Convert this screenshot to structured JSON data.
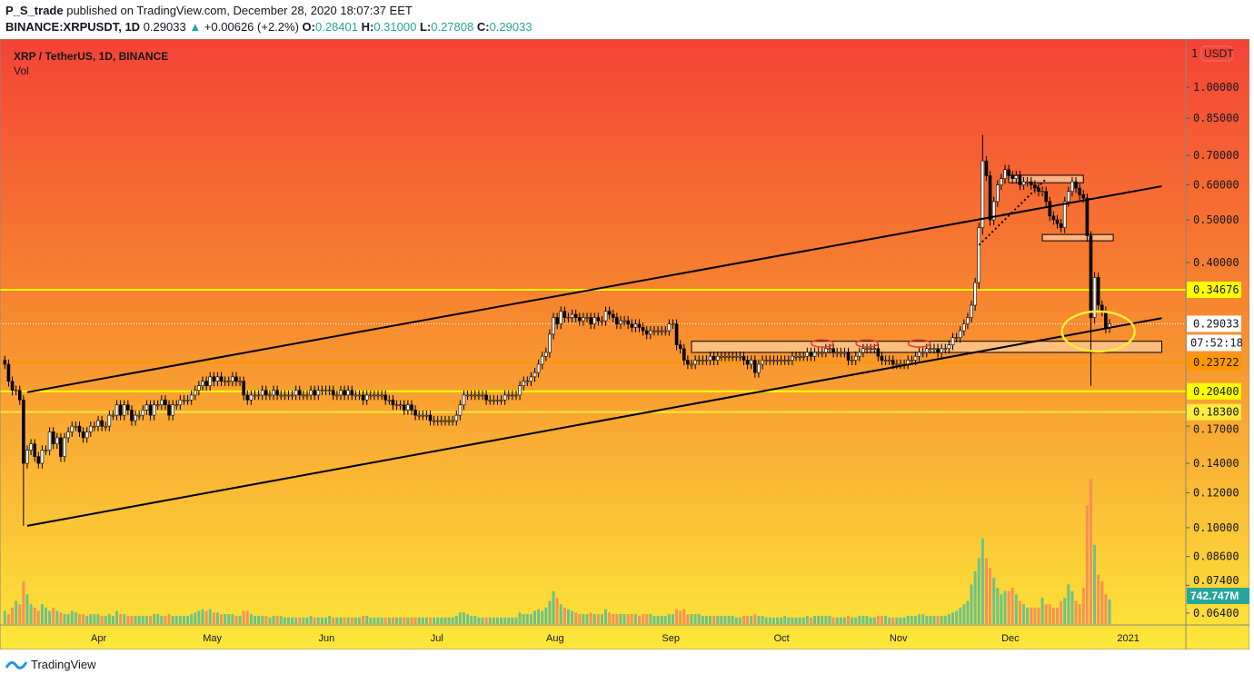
{
  "header": {
    "author": "P_S_trade",
    "published": "published on TradingView.com, December 28, 2020 18:07:37 EET",
    "symbol": "BINANCE:XRPUSDT, 1D",
    "last": "0.29033",
    "change": "+0.00626 (+2.2%)",
    "o_label": "O:",
    "o": "0.28401",
    "h_label": "H:",
    "h": "0.31000",
    "l_label": "L:",
    "l": "0.27808",
    "c_label": "C:",
    "c": "0.29033"
  },
  "legend": {
    "title": "XRP / TetherUS, 1D, BINANCE",
    "indicator": "Vol"
  },
  "footer": {
    "brand": "TradingView"
  },
  "colors": {
    "bg_top": "#f44336",
    "bg_mid": "#f7892f",
    "bg_bottom": "#fde83a",
    "up_volume": "#5fbf8f",
    "down_volume": "#f58a5a",
    "volume_badge": "#26a69a",
    "level_yellow": "#ffff00",
    "level_orange": "#ff9800"
  },
  "chart_data": {
    "type": "candlestick",
    "title": "XRP / TetherUS, 1D, BINANCE",
    "scale": "log",
    "currency_label": "USDT",
    "scale_mode_label": "1",
    "ylim": [
      0.06,
      1.1
    ],
    "y_ticks": [
      "1.00000",
      "0.85000",
      "0.70000",
      "0.60000",
      "0.50000",
      "0.40000",
      "0.17000",
      "0.14000",
      "0.12000",
      "0.10000",
      "0.08600",
      "0.07400",
      "0.06400"
    ],
    "x_ticks": [
      {
        "label": "Apr",
        "date": "2020-04-01"
      },
      {
        "label": "May",
        "date": "2020-05-01"
      },
      {
        "label": "Jun",
        "date": "2020-06-01"
      },
      {
        "label": "Jul",
        "date": "2020-07-01"
      },
      {
        "label": "Aug",
        "date": "2020-08-01"
      },
      {
        "label": "Sep",
        "date": "2020-09-01"
      },
      {
        "label": "Oct",
        "date": "2020-10-01"
      },
      {
        "label": "Nov",
        "date": "2020-11-01"
      },
      {
        "label": "Dec",
        "date": "2020-12-01"
      },
      {
        "label": "2021",
        "date": "2021-01-01"
      }
    ],
    "closes_by_month": {
      "2020-03": [
        0.235,
        0.215,
        0.205,
        0.205,
        0.195,
        0.14,
        0.15,
        0.155,
        0.145,
        0.14,
        0.15,
        0.15,
        0.165,
        0.155,
        0.16,
        0.145,
        0.16,
        0.165,
        0.17,
        0.17,
        0.165,
        0.16,
        0.165,
        0.17,
        0.17
      ],
      "2020-04": [
        0.175,
        0.17,
        0.17,
        0.18,
        0.18,
        0.19,
        0.18,
        0.19,
        0.185,
        0.175,
        0.18,
        0.18,
        0.185,
        0.19,
        0.18,
        0.19,
        0.19,
        0.195,
        0.19,
        0.18,
        0.19,
        0.19,
        0.195,
        0.195,
        0.195,
        0.2,
        0.205,
        0.21,
        0.215,
        0.21
      ],
      "2020-05": [
        0.22,
        0.215,
        0.22,
        0.215,
        0.215,
        0.215,
        0.22,
        0.215,
        0.215,
        0.2,
        0.195,
        0.2,
        0.2,
        0.2,
        0.205,
        0.2,
        0.2,
        0.205,
        0.2,
        0.2,
        0.2,
        0.2,
        0.2,
        0.205,
        0.2,
        0.2,
        0.2,
        0.205,
        0.2,
        0.205,
        0.205
      ],
      "2020-06": [
        0.205,
        0.205,
        0.2,
        0.2,
        0.205,
        0.2,
        0.205,
        0.2,
        0.2,
        0.2,
        0.195,
        0.2,
        0.2,
        0.2,
        0.2,
        0.2,
        0.195,
        0.195,
        0.19,
        0.19,
        0.19,
        0.185,
        0.19,
        0.185,
        0.18,
        0.18,
        0.18,
        0.18,
        0.175,
        0.175
      ],
      "2020-07": [
        0.175,
        0.175,
        0.175,
        0.175,
        0.175,
        0.18,
        0.19,
        0.2,
        0.2,
        0.2,
        0.2,
        0.2,
        0.2,
        0.195,
        0.195,
        0.195,
        0.195,
        0.195,
        0.2,
        0.2,
        0.2,
        0.2,
        0.21,
        0.215,
        0.215,
        0.22,
        0.225,
        0.235,
        0.245,
        0.25,
        0.275
      ],
      "2020-08": [
        0.3,
        0.29,
        0.31,
        0.3,
        0.3,
        0.305,
        0.3,
        0.295,
        0.3,
        0.3,
        0.29,
        0.3,
        0.295,
        0.295,
        0.31,
        0.305,
        0.3,
        0.29,
        0.295,
        0.295,
        0.29,
        0.285,
        0.29,
        0.285,
        0.28,
        0.275,
        0.28,
        0.28,
        0.28,
        0.28,
        0.28
      ],
      "2020-09": [
        0.29,
        0.29,
        0.26,
        0.255,
        0.24,
        0.235,
        0.235,
        0.24,
        0.24,
        0.24,
        0.24,
        0.245,
        0.24,
        0.245,
        0.245,
        0.245,
        0.245,
        0.245,
        0.245,
        0.245,
        0.24,
        0.235,
        0.24,
        0.225,
        0.235,
        0.24,
        0.24,
        0.24,
        0.24,
        0.24
      ],
      "2020-10": [
        0.24,
        0.24,
        0.24,
        0.245,
        0.245,
        0.245,
        0.245,
        0.25,
        0.245,
        0.25,
        0.25,
        0.25,
        0.255,
        0.255,
        0.25,
        0.25,
        0.25,
        0.25,
        0.24,
        0.24,
        0.245,
        0.25,
        0.255,
        0.255,
        0.255,
        0.255,
        0.245,
        0.24,
        0.24,
        0.24,
        0.235
      ],
      "2020-11": [
        0.235,
        0.235,
        0.235,
        0.24,
        0.24,
        0.245,
        0.25,
        0.25,
        0.255,
        0.255,
        0.255,
        0.25,
        0.255,
        0.255,
        0.26,
        0.27,
        0.27,
        0.28,
        0.29,
        0.3,
        0.32,
        0.36,
        0.48,
        0.68,
        0.63,
        0.5,
        0.55,
        0.6,
        0.62,
        0.65
      ],
      "2020-12": [
        0.63,
        0.62,
        0.63,
        0.6,
        0.61,
        0.61,
        0.6,
        0.59,
        0.58,
        0.58,
        0.55,
        0.51,
        0.5,
        0.49,
        0.48,
        0.55,
        0.58,
        0.61,
        0.59,
        0.57,
        0.56,
        0.46,
        0.3,
        0.37,
        0.32,
        0.31,
        0.284,
        0.29033
      ]
    },
    "volume_m_by_month": {
      "2020-03": [
        400,
        300,
        500,
        700,
        600,
        1300,
        900,
        600,
        500,
        400,
        600,
        500,
        400,
        500,
        400,
        350,
        300,
        300,
        400,
        350,
        300,
        300,
        250,
        300,
        300
      ],
      "2020-04": [
        300,
        250,
        250,
        300,
        250,
        400,
        300,
        300,
        250,
        250,
        250,
        250,
        250,
        250,
        250,
        300,
        300,
        250,
        250,
        300,
        250,
        250,
        250,
        250,
        250,
        300,
        350,
        400,
        450,
        400
      ],
      "2020-05": [
        450,
        350,
        350,
        300,
        300,
        300,
        300,
        250,
        250,
        400,
        400,
        300,
        250,
        250,
        250,
        250,
        200,
        250,
        250,
        250,
        200,
        200,
        200,
        200,
        200,
        200,
        200,
        250,
        200,
        200,
        200
      ],
      "2020-06": [
        200,
        250,
        200,
        200,
        200,
        200,
        200,
        200,
        200,
        200,
        250,
        250,
        200,
        200,
        200,
        200,
        200,
        200,
        200,
        200,
        200,
        200,
        200,
        200,
        200,
        200,
        200,
        200,
        200,
        200
      ],
      "2020-07": [
        200,
        200,
        200,
        200,
        200,
        250,
        350,
        350,
        300,
        250,
        250,
        200,
        200,
        200,
        200,
        200,
        200,
        200,
        200,
        200,
        200,
        200,
        350,
        300,
        300,
        300,
        400,
        450,
        400,
        500,
        700
      ],
      "2020-08": [
        1000,
        800,
        600,
        500,
        450,
        400,
        350,
        300,
        300,
        300,
        350,
        300,
        300,
        300,
        450,
        350,
        300,
        300,
        300,
        300,
        300,
        300,
        300,
        250,
        300,
        300,
        300,
        250,
        250,
        250,
        250
      ],
      "2020-09": [
        300,
        300,
        450,
        400,
        450,
        300,
        300,
        300,
        300,
        250,
        250,
        250,
        250,
        250,
        250,
        250,
        250,
        250,
        200,
        200,
        250,
        250,
        250,
        300,
        250,
        250,
        200,
        200,
        200,
        200
      ],
      "2020-10": [
        200,
        250,
        200,
        200,
        200,
        200,
        200,
        250,
        200,
        250,
        250,
        250,
        250,
        250,
        200,
        200,
        200,
        200,
        250,
        200,
        200,
        250,
        250,
        250,
        200,
        200,
        250,
        250,
        250,
        200,
        200
      ],
      "2020-11": [
        200,
        200,
        200,
        250,
        250,
        250,
        300,
        300,
        250,
        250,
        250,
        250,
        250,
        250,
        300,
        350,
        400,
        500,
        600,
        700,
        1200,
        1600,
        2000,
        2600,
        2000,
        1700,
        1400,
        1100,
        900,
        1000
      ],
      "2020-12": [
        1000,
        1100,
        900,
        700,
        600,
        500,
        500,
        500,
        500,
        800,
        600,
        600,
        500,
        500,
        700,
        800,
        1200,
        1000,
        700,
        600,
        1100,
        3600,
        4400,
        2400,
        1500,
        1300,
        900,
        743
      ]
    },
    "last_price_label": "0.29033",
    "countdown_label": "07:52:18",
    "volume_label": "742.747M",
    "levels": [
      {
        "price": 0.34676,
        "label": "0.34676",
        "color": "#ffff00",
        "style": "solid"
      },
      {
        "price": 0.23722,
        "label": "0.23722",
        "color": "#ff9800",
        "style": "solid"
      },
      {
        "price": 0.204,
        "label": "0.20400",
        "color": "#ffff00",
        "style": "solid"
      },
      {
        "price": 0.183,
        "label": "0.18300",
        "color": "#ffeb3b",
        "style": "solid"
      }
    ],
    "trendlines": [
      {
        "name": "channel-upper",
        "from": [
          "2020-03-13",
          0.203
        ],
        "to": [
          "2021-01-11",
          0.596
        ],
        "style": "solid"
      },
      {
        "name": "channel-lower",
        "from": [
          "2020-03-13",
          0.101
        ],
        "to": [
          "2021-01-11",
          0.299
        ],
        "style": "solid"
      },
      {
        "name": "dotted-support",
        "from": [
          "2020-11-23",
          0.438
        ],
        "to": [
          "2020-12-11",
          0.619
        ],
        "style": "dotted"
      }
    ],
    "zones": [
      {
        "from": "2020-09-07",
        "to": "2021-01-11",
        "low": 0.25,
        "high": 0.265
      },
      {
        "from": "2020-12-01",
        "to": "2020-12-21",
        "low": 0.607,
        "high": 0.631
      },
      {
        "from": "2020-12-10",
        "to": "2020-12-29",
        "low": 0.448,
        "high": 0.463
      }
    ],
    "highlight_ellipse": {
      "date": "2020-12-25",
      "price": 0.279,
      "color": "#ffeb3b"
    },
    "marker_ellipses": [
      {
        "date": "2020-10-12",
        "price": 0.262
      },
      {
        "date": "2020-10-24",
        "price": 0.262
      },
      {
        "date": "2020-11-07",
        "price": 0.262
      }
    ]
  }
}
